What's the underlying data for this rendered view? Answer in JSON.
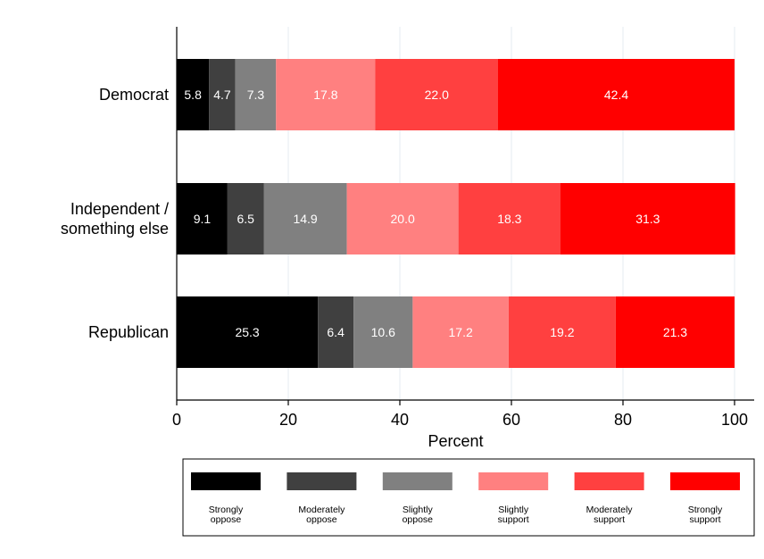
{
  "chart_data": {
    "type": "bar",
    "orientation": "horizontal",
    "stacked": true,
    "categories": [
      "Democrat",
      "Independent / something else",
      "Republican"
    ],
    "category_lines": [
      [
        "Democrat"
      ],
      [
        "Independent /",
        "something else"
      ],
      [
        "Republican"
      ]
    ],
    "series": [
      {
        "name": "Strongly oppose",
        "name_lines": [
          "Strongly",
          "oppose"
        ],
        "color": "#000000",
        "values": [
          5.8,
          9.1,
          25.3
        ]
      },
      {
        "name": "Moderately oppose",
        "name_lines": [
          "Moderately",
          "oppose"
        ],
        "color": "#404040",
        "values": [
          4.7,
          6.5,
          6.4
        ]
      },
      {
        "name": "Slightly oppose",
        "name_lines": [
          "Slightly",
          "oppose"
        ],
        "color": "#808080",
        "values": [
          7.3,
          14.9,
          10.6
        ]
      },
      {
        "name": "Slightly support",
        "name_lines": [
          "Slightly",
          "support"
        ],
        "color": "#ff8080",
        "values": [
          17.8,
          20.0,
          17.2
        ]
      },
      {
        "name": "Moderately support",
        "name_lines": [
          "Moderately",
          "support"
        ],
        "color": "#ff4040",
        "values": [
          22.0,
          18.3,
          19.2
        ]
      },
      {
        "name": "Strongly support",
        "name_lines": [
          "Strongly",
          "support"
        ],
        "color": "#ff0000",
        "values": [
          42.4,
          31.3,
          21.3
        ]
      }
    ],
    "xlabel": "Percent",
    "xlim": [
      0,
      100
    ],
    "xticks": [
      0,
      20,
      40,
      60,
      80,
      100
    ],
    "grid": "vertical",
    "legend_position": "bottom"
  }
}
